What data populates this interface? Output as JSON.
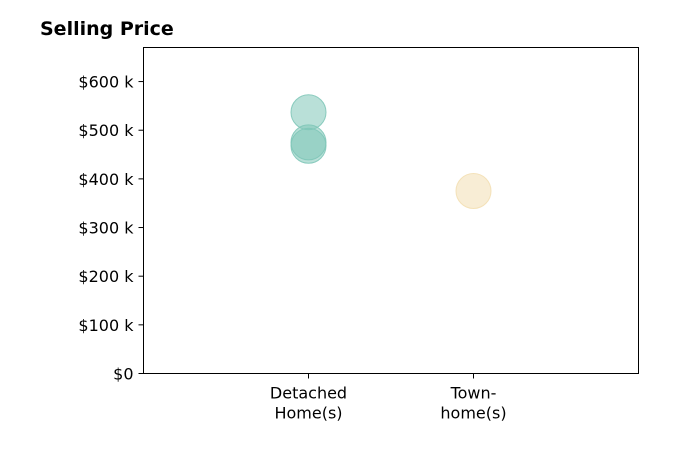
{
  "chart_data": {
    "type": "scatter",
    "title": "Selling Price",
    "xlabel": "",
    "ylabel": "",
    "categories": [
      [
        "Detached",
        "Home(s)"
      ],
      [
        "Town-",
        "home(s)"
      ]
    ],
    "y_ticks": [
      {
        "value": 0,
        "label": "$0"
      },
      {
        "value": 100000,
        "label": "$100 k"
      },
      {
        "value": 200000,
        "label": "$200 k"
      },
      {
        "value": 300000,
        "label": "$300 k"
      },
      {
        "value": 400000,
        "label": "$400 k"
      },
      {
        "value": 500000,
        "label": "$500 k"
      },
      {
        "value": 600000,
        "label": "$600 k"
      }
    ],
    "ylim": [
      0,
      670000
    ],
    "x_range": [
      -1,
      2
    ],
    "grid": false,
    "points": [
      {
        "category": 0,
        "y": 537000,
        "color": "#7fc7b8"
      },
      {
        "category": 0,
        "y": 475000,
        "color": "#7fc7b8"
      },
      {
        "category": 0,
        "y": 468000,
        "color": "#7fc7b8"
      },
      {
        "category": 1,
        "y": 375000,
        "color": "#f3dfb2"
      }
    ]
  }
}
